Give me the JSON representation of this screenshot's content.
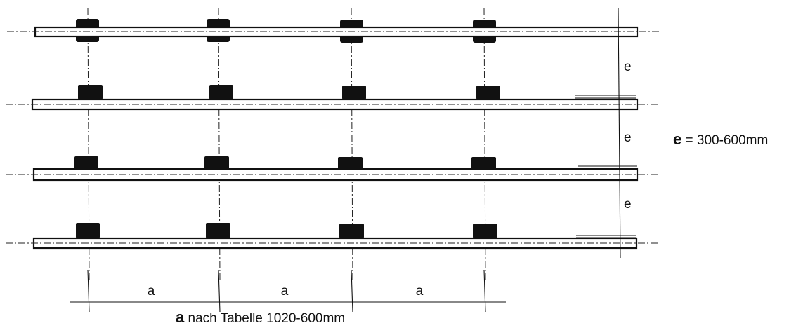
{
  "diagram": {
    "row_spacing_label": "e",
    "column_spacing_label": "a",
    "e_note": {
      "key": "e",
      "text": " = 300-600mm"
    },
    "a_note": {
      "key": "a",
      "text": " nach Tabelle 1020-600mm"
    }
  },
  "colors": {
    "ink": "#111111",
    "background": "#ffffff"
  }
}
